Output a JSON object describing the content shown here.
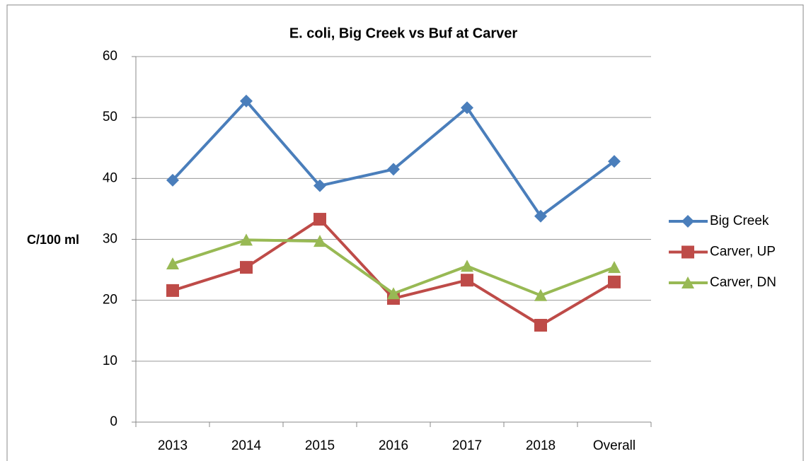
{
  "chart_data": {
    "type": "line",
    "title": "E. coli, Big Creek vs Buf at Carver",
    "y_label": "C/100 ml",
    "categories": [
      "2013",
      "2014",
      "2015",
      "2016",
      "2017",
      "2018",
      "Overall"
    ],
    "series": [
      {
        "name": "Big Creek",
        "color": "#4a7ebb",
        "marker": "diamond",
        "values": [
          39.7,
          52.7,
          38.8,
          41.5,
          51.6,
          33.8,
          42.8
        ]
      },
      {
        "name": "Carver, UP",
        "color": "#be4b48",
        "marker": "square",
        "values": [
          21.6,
          25.4,
          33.3,
          20.3,
          23.3,
          15.9,
          23.0
        ]
      },
      {
        "name": "Carver, DN",
        "color": "#98b954",
        "marker": "triangle",
        "values": [
          26.0,
          29.9,
          29.7,
          21.1,
          25.6,
          20.8,
          25.4
        ]
      }
    ],
    "ylim": [
      0,
      60
    ],
    "yticks": [
      0,
      10,
      20,
      30,
      40,
      50,
      60
    ],
    "grid": true,
    "legend": "right"
  }
}
